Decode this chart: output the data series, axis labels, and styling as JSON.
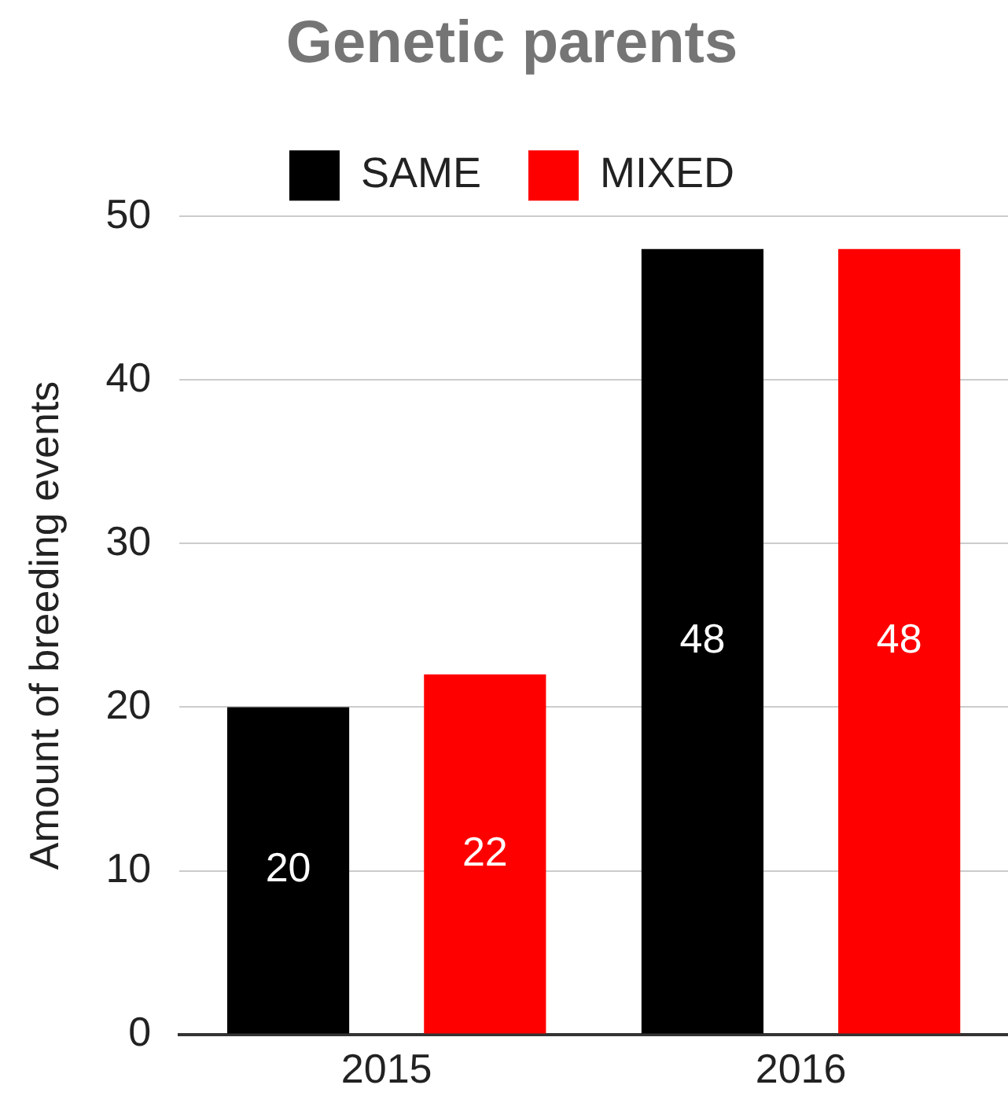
{
  "chart_data": {
    "type": "bar",
    "title": "Genetic parents",
    "ylabel": "Amount of breeding events",
    "categories": [
      "2015",
      "2016"
    ],
    "series": [
      {
        "name": "SAME",
        "color": "#000000",
        "values": [
          20,
          48
        ]
      },
      {
        "name": "MIXED",
        "color": "#ff0000",
        "values": [
          22,
          48
        ]
      }
    ],
    "ylim": [
      0,
      50
    ],
    "yticks": [
      0,
      10,
      20,
      30,
      40,
      50
    ],
    "grid": "y",
    "legend": "top",
    "data_labels": true
  }
}
